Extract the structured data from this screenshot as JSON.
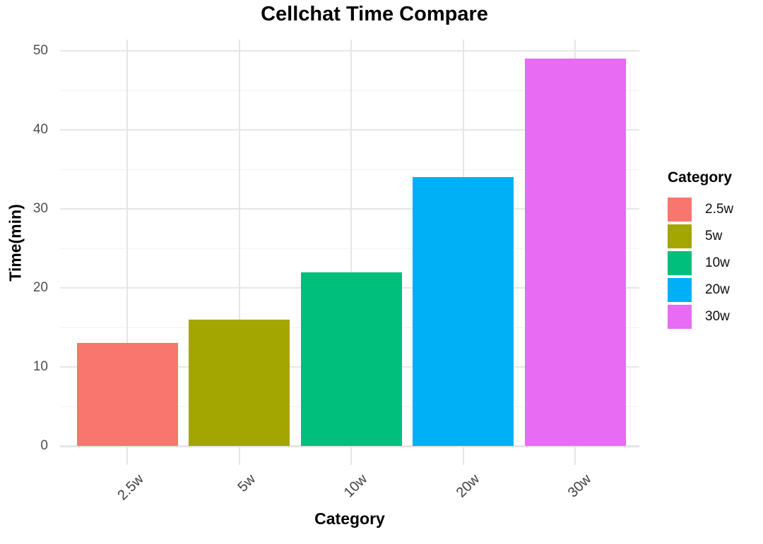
{
  "chart_data": {
    "type": "bar",
    "title": "Cellchat Time Compare",
    "xlabel": "Category",
    "ylabel": "Time(min)",
    "categories": [
      "2.5w",
      "5w",
      "10w",
      "20w",
      "30w"
    ],
    "values": [
      13,
      16,
      22,
      34,
      49
    ],
    "bar_colors": [
      "#F8766D",
      "#A3A500",
      "#00BF7D",
      "#00B0F6",
      "#E76BF3"
    ],
    "ylim": [
      0,
      50
    ],
    "yticks": [
      0,
      10,
      20,
      30,
      40,
      50
    ],
    "yticks_minor": [
      5,
      15,
      25,
      35,
      45
    ],
    "grid": "major and minor horizontal, major vertical at category centers",
    "legend": {
      "title": "Category",
      "position": "right",
      "labels": [
        "2.5w",
        "5w",
        "10w",
        "20w",
        "30w"
      ]
    }
  },
  "style_colors": {
    "background": "#FFFFFF",
    "grid_major": "#E6E6E6",
    "grid_minor": "#F1F1F1",
    "axis_line": "#E2E2E2",
    "tick_label": "#4D4D4D",
    "text": "#000000"
  }
}
